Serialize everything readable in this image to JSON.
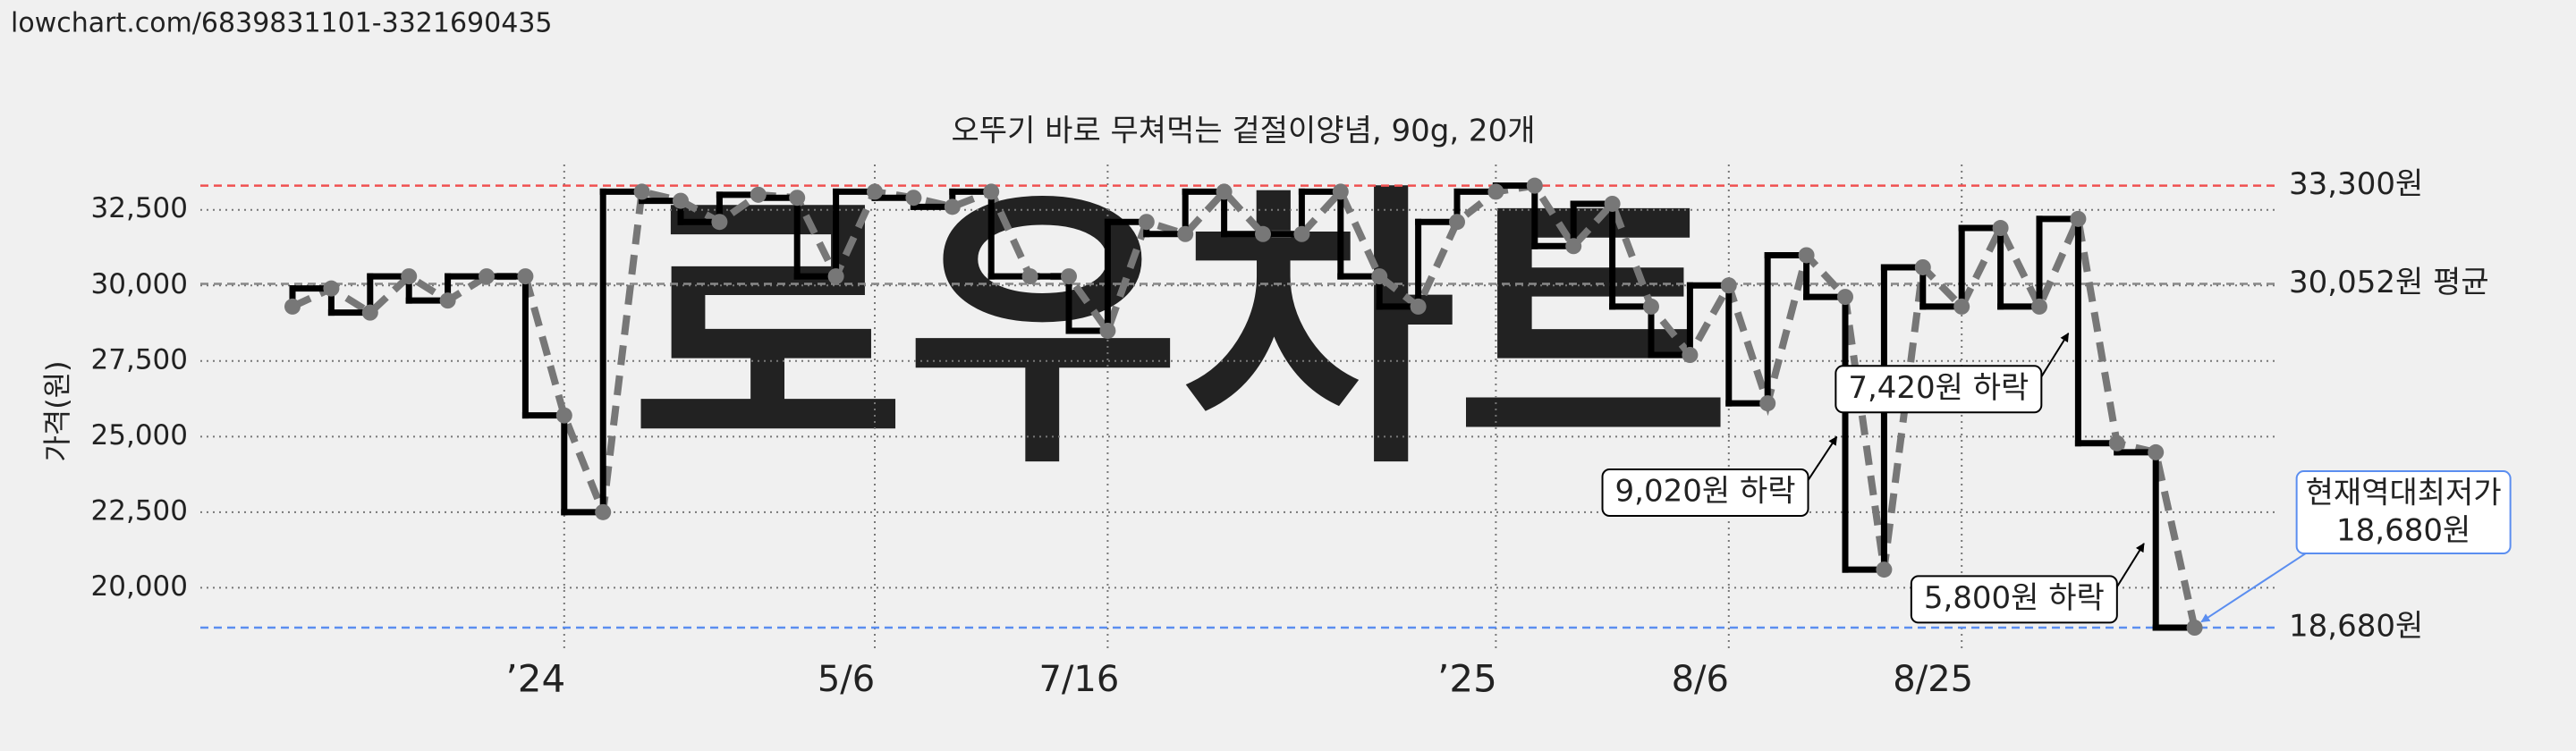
{
  "header": {
    "url": "lowchart.com/6839831101-3321690435"
  },
  "chart_data": {
    "type": "step",
    "title": "오뚜기 바로 무쳐먹는 겉절이양념, 90g, 20개",
    "y_label": "가격(원)",
    "watermark": "로우차트",
    "categories": [
      null,
      null,
      null,
      null,
      null,
      null,
      null,
      "’24",
      null,
      null,
      null,
      null,
      null,
      null,
      null,
      "5/6",
      null,
      null,
      null,
      null,
      null,
      "7/16",
      null,
      null,
      null,
      null,
      null,
      null,
      null,
      null,
      null,
      "’25",
      null,
      null,
      null,
      null,
      null,
      "8/6",
      null,
      null,
      null,
      null,
      null,
      "8/25",
      null,
      null,
      null,
      null,
      null,
      null
    ],
    "values": [
      29300,
      29900,
      29100,
      30300,
      29500,
      30300,
      30300,
      25700,
      22500,
      33100,
      32800,
      32100,
      33000,
      32900,
      30300,
      33100,
      32900,
      32600,
      33100,
      30300,
      30300,
      28500,
      32100,
      31700,
      33100,
      31700,
      31700,
      33100,
      30300,
      29300,
      32100,
      33100,
      33300,
      31300,
      32700,
      29300,
      27700,
      30000,
      26100,
      31000,
      29620,
      20600,
      30600,
      29300,
      31900,
      29300,
      32200,
      24780,
      24480,
      18680
    ],
    "color": "#000000",
    "trend_color": "#777777",
    "ylim": [
      18000,
      34000
    ],
    "yticks": [
      {
        "value": 20000,
        "label": "20,000"
      },
      {
        "value": 22500,
        "label": "22,500"
      },
      {
        "value": 25000,
        "label": "25,000"
      },
      {
        "value": 27500,
        "label": "27,500"
      },
      {
        "value": 30000,
        "label": "30,000"
      },
      {
        "value": 32500,
        "label": "32,500"
      }
    ],
    "grid": true,
    "reference_lines": [
      {
        "value": 33300,
        "label": "33,300원",
        "color": "#f05050"
      },
      {
        "value": 30052,
        "label": "30,052원 평균",
        "color": "#888888"
      },
      {
        "value": 18680,
        "label": "18,680원",
        "color": "#5b8ef0"
      }
    ],
    "annotations": [
      {
        "text": "9,020원 하락"
      },
      {
        "text": "7,420원 하락"
      },
      {
        "text": "5,800원 하락"
      }
    ],
    "callout": {
      "lines": [
        "현재역대최저가",
        "18,680원"
      ],
      "color": "#5b8ef0"
    }
  }
}
